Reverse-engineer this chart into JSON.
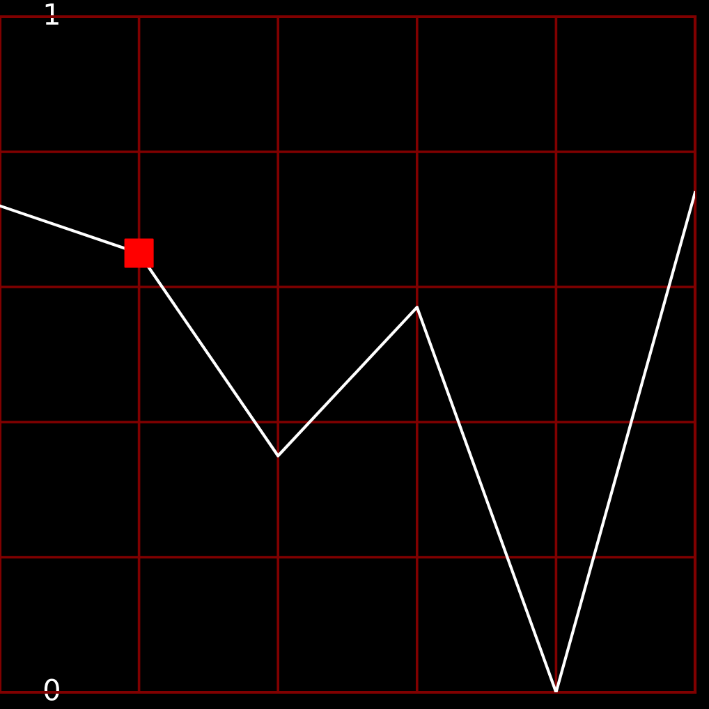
{
  "chart_data": {
    "type": "line",
    "categories": [
      null,
      null,
      null,
      null,
      null,
      null
    ],
    "ylim": [
      0,
      1
    ],
    "yticks": [
      {
        "value": 0,
        "label": "0"
      },
      {
        "value": 0.2,
        "label": null
      },
      {
        "value": 0.4,
        "label": null
      },
      {
        "value": 0.6,
        "label": null
      },
      {
        "value": 0.8,
        "label": null
      },
      {
        "value": 1,
        "label": "1"
      }
    ],
    "grid": true,
    "tick_labels": "y",
    "series": [
      {
        "color": "#ffffff",
        "values": [
          0.72,
          0.65,
          0.35,
          0.57,
          0.0,
          0.74
        ]
      }
    ]
  }
}
